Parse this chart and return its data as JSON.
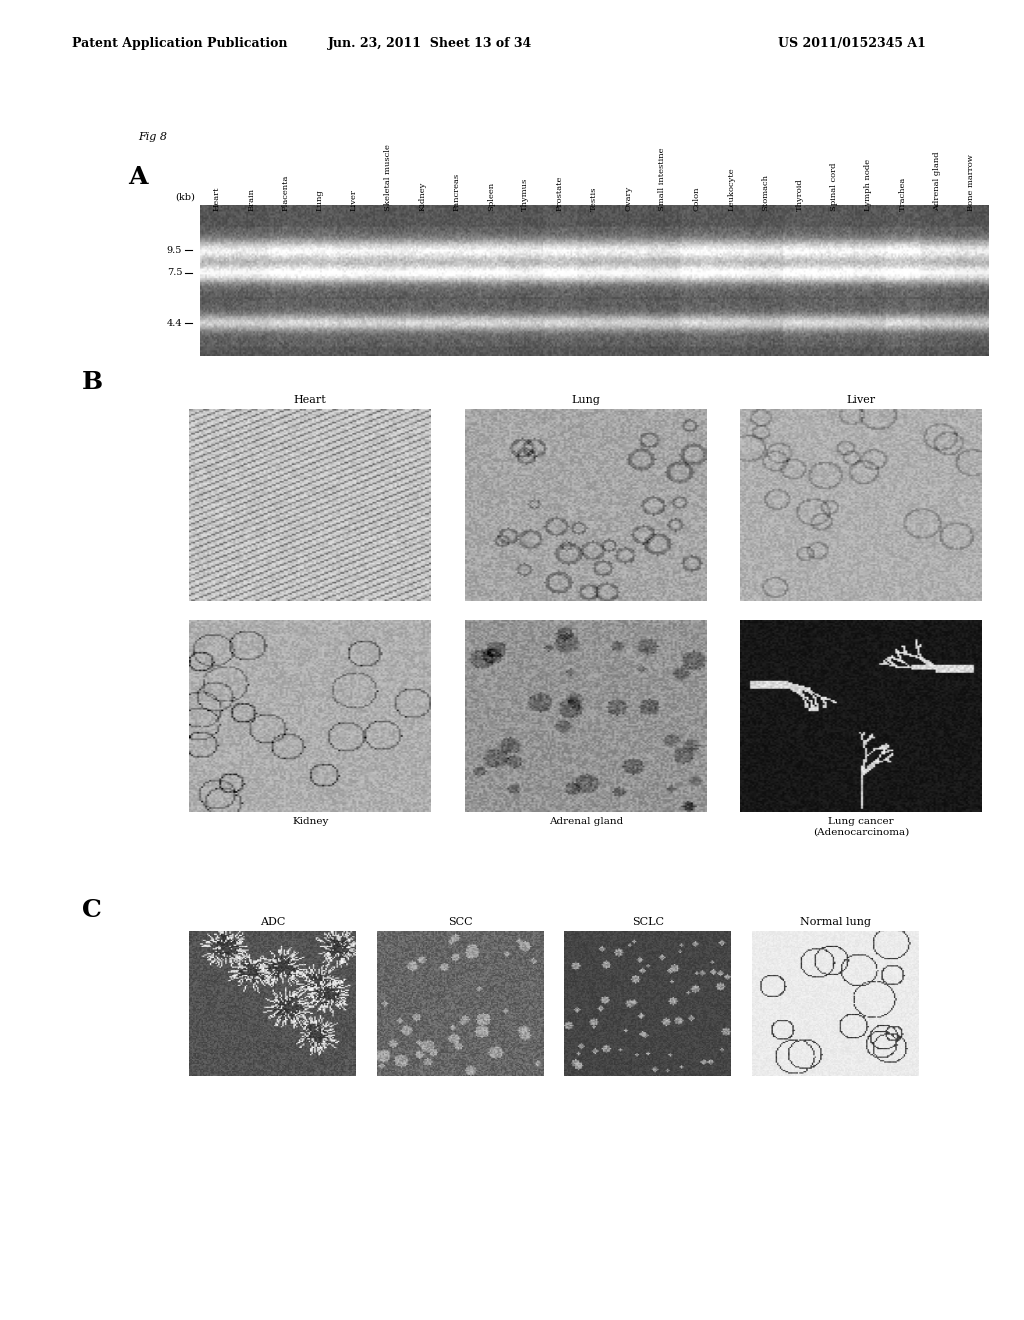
{
  "header_left": "Patent Application Publication",
  "header_mid": "Jun. 23, 2011  Sheet 13 of 34",
  "header_right": "US 2011/0152345 A1",
  "fig_label": "Fig 8",
  "panel_A_label": "A",
  "panel_B_label": "B",
  "panel_C_label": "C",
  "panel_A_tissue_labels": [
    "Heart",
    "Brain",
    "Placenta",
    "Lung",
    "Liver",
    "Skeletal muscle",
    "Kidney",
    "Pancreas",
    "Spleen",
    "Thymus",
    "Prostate",
    "Testis",
    "Ovary",
    "Small intestine",
    "Colon",
    "Leukocyte",
    "Stomach",
    "Thyroid",
    "Spinal cord",
    "Lymph node",
    "Trachea",
    "Adrenal gland",
    "Bone marrow"
  ],
  "panel_A_kb_labels": [
    "9.5",
    "7.5",
    "4.4"
  ],
  "panel_A_kb_axis_label": "(kb)",
  "panel_B_top_labels": [
    "Heart",
    "Lung",
    "Liver"
  ],
  "panel_B_bottom_labels": [
    "Kidney",
    "Adrenal gland",
    "Lung cancer\n(Adenocarcinoma)"
  ],
  "panel_C_labels": [
    "ADC",
    "SCC",
    "SCLC",
    "Normal lung"
  ],
  "background_color": "#ffffff",
  "text_color": "#000000"
}
